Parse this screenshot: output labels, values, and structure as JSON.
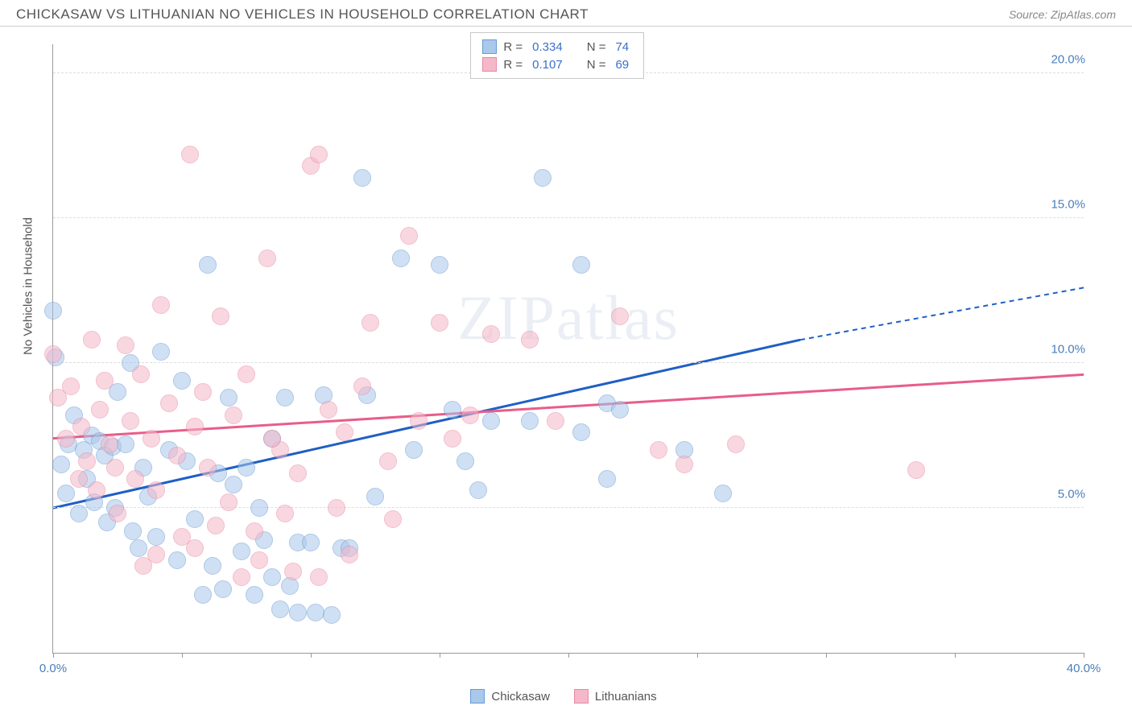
{
  "header": {
    "title": "CHICKASAW VS LITHUANIAN NO VEHICLES IN HOUSEHOLD CORRELATION CHART",
    "source": "Source: ZipAtlas.com"
  },
  "watermark": "ZIPatlas",
  "chart": {
    "type": "scatter",
    "ylabel": "No Vehicles in Household",
    "background_color": "#ffffff",
    "grid_color": "#dddddd",
    "axis_color": "#999999",
    "tick_label_color": "#4a7ebb",
    "xlim": [
      0,
      40
    ],
    "ylim": [
      0,
      21
    ],
    "y_gridlines": [
      5,
      10,
      15,
      20
    ],
    "y_tick_labels": [
      "5.0%",
      "10.0%",
      "15.0%",
      "20.0%"
    ],
    "x_ticks": [
      0,
      5,
      10,
      15,
      20,
      25,
      30,
      35,
      40
    ],
    "x_tick_labels": {
      "0": "0.0%",
      "40": "40.0%"
    },
    "point_radius": 11,
    "point_opacity": 0.55,
    "series": [
      {
        "name": "Chickasaw",
        "fill_color": "#a8c8ec",
        "stroke_color": "#6b9bd1",
        "trend_color": "#1f5fc4",
        "trend": {
          "x1": 0,
          "y1": 5.0,
          "x2_solid": 29,
          "y2_solid": 10.8,
          "x2_dash": 40,
          "y2_dash": 12.6
        },
        "R": "0.334",
        "N": "74",
        "points": [
          [
            0,
            11.8
          ],
          [
            0.1,
            10.2
          ],
          [
            0.3,
            6.5
          ],
          [
            0.5,
            5.5
          ],
          [
            0.6,
            7.2
          ],
          [
            0.8,
            8.2
          ],
          [
            1.0,
            4.8
          ],
          [
            1.2,
            7.0
          ],
          [
            1.3,
            6.0
          ],
          [
            1.5,
            7.5
          ],
          [
            1.6,
            5.2
          ],
          [
            1.8,
            7.3
          ],
          [
            2.0,
            6.8
          ],
          [
            2.1,
            4.5
          ],
          [
            2.3,
            7.1
          ],
          [
            2.4,
            5.0
          ],
          [
            2.5,
            9.0
          ],
          [
            2.8,
            7.2
          ],
          [
            3.0,
            10.0
          ],
          [
            3.1,
            4.2
          ],
          [
            3.3,
            3.6
          ],
          [
            3.5,
            6.4
          ],
          [
            3.7,
            5.4
          ],
          [
            4.0,
            4.0
          ],
          [
            4.2,
            10.4
          ],
          [
            4.5,
            7.0
          ],
          [
            4.8,
            3.2
          ],
          [
            5.0,
            9.4
          ],
          [
            5.2,
            6.6
          ],
          [
            5.5,
            4.6
          ],
          [
            5.8,
            2.0
          ],
          [
            6.0,
            13.4
          ],
          [
            6.2,
            3.0
          ],
          [
            6.4,
            6.2
          ],
          [
            6.6,
            2.2
          ],
          [
            6.8,
            8.8
          ],
          [
            7.0,
            5.8
          ],
          [
            7.3,
            3.5
          ],
          [
            7.5,
            6.4
          ],
          [
            7.8,
            2.0
          ],
          [
            8.0,
            5.0
          ],
          [
            8.2,
            3.9
          ],
          [
            8.5,
            7.4
          ],
          [
            8.5,
            2.6
          ],
          [
            8.8,
            1.5
          ],
          [
            9.0,
            8.8
          ],
          [
            9.2,
            2.3
          ],
          [
            9.5,
            3.8
          ],
          [
            10.0,
            3.8
          ],
          [
            10.2,
            1.4
          ],
          [
            10.5,
            8.9
          ],
          [
            10.8,
            1.3
          ],
          [
            11.2,
            3.6
          ],
          [
            12.0,
            16.4
          ],
          [
            12.2,
            8.9
          ],
          [
            12.5,
            5.4
          ],
          [
            13.5,
            13.6
          ],
          [
            14.0,
            7.0
          ],
          [
            15.0,
            13.4
          ],
          [
            15.5,
            8.4
          ],
          [
            16.0,
            6.6
          ],
          [
            16.5,
            5.6
          ],
          [
            17.0,
            8.0
          ],
          [
            18.5,
            8.0
          ],
          [
            19.0,
            16.4
          ],
          [
            20.5,
            7.6
          ],
          [
            20.5,
            13.4
          ],
          [
            21.5,
            8.6
          ],
          [
            21.5,
            6.0
          ],
          [
            22.0,
            8.4
          ],
          [
            24.5,
            7.0
          ],
          [
            26.0,
            5.5
          ],
          [
            9.5,
            1.4
          ],
          [
            11.5,
            3.6
          ]
        ]
      },
      {
        "name": "Lithuanians",
        "fill_color": "#f5b8c8",
        "stroke_color": "#e68aa3",
        "trend_color": "#e85d8a",
        "trend": {
          "x1": 0,
          "y1": 7.4,
          "x2_solid": 40,
          "y2_solid": 9.6,
          "x2_dash": 40,
          "y2_dash": 9.6
        },
        "R": "0.107",
        "N": "69",
        "points": [
          [
            0,
            10.3
          ],
          [
            0.2,
            8.8
          ],
          [
            0.5,
            7.4
          ],
          [
            0.7,
            9.2
          ],
          [
            1.0,
            6.0
          ],
          [
            1.1,
            7.8
          ],
          [
            1.3,
            6.6
          ],
          [
            1.5,
            10.8
          ],
          [
            1.7,
            5.6
          ],
          [
            1.8,
            8.4
          ],
          [
            2.0,
            9.4
          ],
          [
            2.2,
            7.2
          ],
          [
            2.4,
            6.4
          ],
          [
            2.5,
            4.8
          ],
          [
            2.8,
            10.6
          ],
          [
            3.0,
            8.0
          ],
          [
            3.2,
            6.0
          ],
          [
            3.4,
            9.6
          ],
          [
            3.5,
            3.0
          ],
          [
            3.8,
            7.4
          ],
          [
            4.0,
            5.6
          ],
          [
            4.2,
            12.0
          ],
          [
            4.5,
            8.6
          ],
          [
            4.8,
            6.8
          ],
          [
            5.0,
            4.0
          ],
          [
            5.3,
            17.2
          ],
          [
            5.5,
            7.8
          ],
          [
            5.8,
            9.0
          ],
          [
            6.0,
            6.4
          ],
          [
            6.3,
            4.4
          ],
          [
            6.5,
            11.6
          ],
          [
            6.8,
            5.2
          ],
          [
            7.0,
            8.2
          ],
          [
            7.3,
            2.6
          ],
          [
            7.5,
            9.6
          ],
          [
            7.8,
            4.2
          ],
          [
            8.0,
            3.2
          ],
          [
            8.3,
            13.6
          ],
          [
            8.8,
            7.0
          ],
          [
            9.0,
            4.8
          ],
          [
            9.3,
            2.8
          ],
          [
            9.5,
            6.2
          ],
          [
            10.0,
            16.8
          ],
          [
            10.3,
            2.6
          ],
          [
            10.3,
            17.2
          ],
          [
            10.7,
            8.4
          ],
          [
            11.0,
            5.0
          ],
          [
            11.3,
            7.6
          ],
          [
            11.5,
            3.4
          ],
          [
            12.0,
            9.2
          ],
          [
            12.3,
            11.4
          ],
          [
            13.0,
            6.6
          ],
          [
            13.2,
            4.6
          ],
          [
            13.8,
            14.4
          ],
          [
            14.2,
            8.0
          ],
          [
            15.0,
            11.4
          ],
          [
            15.5,
            7.4
          ],
          [
            16.2,
            8.2
          ],
          [
            17.0,
            11.0
          ],
          [
            18.5,
            10.8
          ],
          [
            19.5,
            8.0
          ],
          [
            22.0,
            11.6
          ],
          [
            23.5,
            7.0
          ],
          [
            24.5,
            6.5
          ],
          [
            26.5,
            7.2
          ],
          [
            33.5,
            6.3
          ],
          [
            8.5,
            7.4
          ],
          [
            5.5,
            3.6
          ],
          [
            4.0,
            3.4
          ]
        ]
      }
    ]
  },
  "legend_top": {
    "rows": [
      {
        "swatch_fill": "#a8c8ec",
        "swatch_stroke": "#6b9bd1",
        "R_label": "R =",
        "R_val": "0.334",
        "N_label": "N =",
        "N_val": "74"
      },
      {
        "swatch_fill": "#f5b8c8",
        "swatch_stroke": "#e68aa3",
        "R_label": "R =",
        "R_val": "0.107",
        "N_label": "N =",
        "N_val": "69"
      }
    ]
  },
  "legend_bottom": {
    "items": [
      {
        "swatch_fill": "#a8c8ec",
        "swatch_stroke": "#6b9bd1",
        "label": "Chickasaw"
      },
      {
        "swatch_fill": "#f5b8c8",
        "swatch_stroke": "#e68aa3",
        "label": "Lithuanians"
      }
    ]
  }
}
